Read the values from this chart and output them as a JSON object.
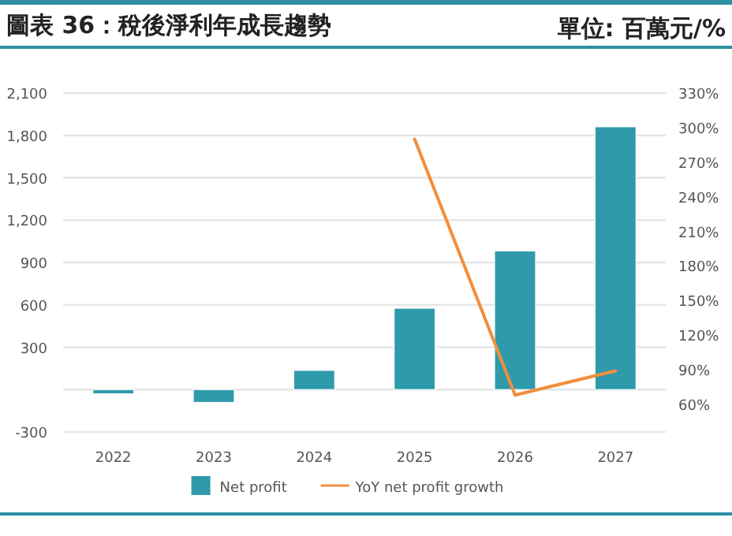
{
  "chart_data": {
    "type": "bar",
    "title": "圖表 36：稅後淨利年成長趨勢",
    "subtitle": "單位: 百萬元/%",
    "categories": [
      "2022",
      "2023",
      "2024",
      "2025",
      "2026",
      "2027"
    ],
    "series": [
      {
        "name": "Net profit",
        "color": "#2e9aab",
        "values": [
          -30,
          -91,
          136,
          576,
          982,
          1861
        ]
      },
      {
        "name": "YoY net profit growth",
        "type": "line",
        "axis": "y2",
        "color": "#f28e3c",
        "values": [
          null,
          null,
          null,
          290,
          68,
          89
        ]
      }
    ],
    "ylim": [
      -300,
      2100
    ],
    "yticks": [
      -300,
      {
        "value": 0,
        "label": null
      },
      {
        "value": 300,
        "label": "300"
      },
      {
        "value": 600,
        "label": "600"
      },
      {
        "value": 900,
        "label": "900"
      },
      {
        "value": 1200,
        "label": "1,200"
      },
      {
        "value": 1500,
        "label": "1,500"
      },
      {
        "value": 1800,
        "label": "1,800"
      },
      {
        "value": 2100,
        "label": "2,100"
      }
    ],
    "y2lim": [
      36,
      330
    ],
    "y2ticks": [
      {
        "value": 60,
        "label": "60%"
      },
      {
        "value": 90,
        "label": "90%"
      },
      {
        "value": 120,
        "label": "120%"
      },
      {
        "value": 150,
        "label": "150%"
      },
      {
        "value": 180,
        "label": "180%"
      },
      {
        "value": 210,
        "label": "210%"
      },
      {
        "value": 240,
        "label": "240%"
      },
      {
        "value": 270,
        "label": "270%"
      },
      {
        "value": 300,
        "label": "300%"
      },
      {
        "value": 330,
        "label": "330%"
      }
    ],
    "grid": "y",
    "legend": "bottom"
  }
}
